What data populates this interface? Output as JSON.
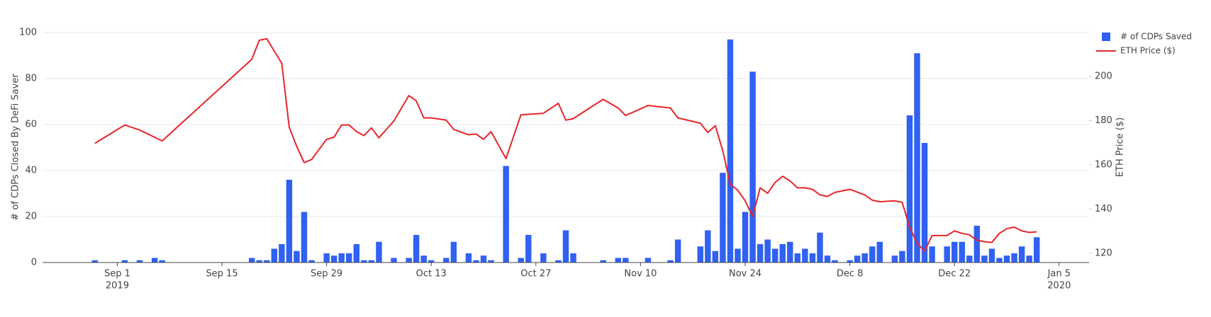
{
  "chart_data": {
    "type": "bar-line",
    "y_label": "# of CDPs Closed By DeFi Saver",
    "y2_label": "ETH Price ($)",
    "xlim": [
      "2019-08-22",
      "2020-01-09"
    ],
    "xticks": [
      {
        "value": "2019-09-01",
        "label": "Sep 1",
        "sublabel": "2019"
      },
      {
        "value": "2019-09-15",
        "label": "Sep 15"
      },
      {
        "value": "2019-09-29",
        "label": "Sep 29"
      },
      {
        "value": "2019-10-13",
        "label": "Oct 13"
      },
      {
        "value": "2019-10-27",
        "label": "Oct 27"
      },
      {
        "value": "2019-11-10",
        "label": "Nov 10"
      },
      {
        "value": "2019-11-24",
        "label": "Nov 24"
      },
      {
        "value": "2019-12-08",
        "label": "Dec 8"
      },
      {
        "value": "2019-12-22",
        "label": "Dec 22"
      },
      {
        "value": "2020-01-05",
        "label": "Jan 5",
        "sublabel": "2020"
      }
    ],
    "ylim": [
      0,
      100
    ],
    "yticks": [
      0,
      20,
      40,
      60,
      80,
      100
    ],
    "y2lim": [
      115.8,
      219.8
    ],
    "y2ticks": [
      120,
      140,
      160,
      180,
      200
    ],
    "grid": true,
    "legend": "top-right",
    "series": [
      {
        "name": "# of CDPs Saved",
        "color": "#3061f2",
        "type": "bar",
        "x": [
          "2019-08-29",
          "2019-09-02",
          "2019-09-04",
          "2019-09-06",
          "2019-09-07",
          "2019-09-19",
          "2019-09-20",
          "2019-09-21",
          "2019-09-22",
          "2019-09-23",
          "2019-09-24",
          "2019-09-25",
          "2019-09-26",
          "2019-09-27",
          "2019-09-29",
          "2019-09-30",
          "2019-10-01",
          "2019-10-02",
          "2019-10-03",
          "2019-10-04",
          "2019-10-05",
          "2019-10-06",
          "2019-10-08",
          "2019-10-10",
          "2019-10-11",
          "2019-10-12",
          "2019-10-13",
          "2019-10-15",
          "2019-10-16",
          "2019-10-18",
          "2019-10-19",
          "2019-10-20",
          "2019-10-21",
          "2019-10-23",
          "2019-10-25",
          "2019-10-26",
          "2019-10-28",
          "2019-10-30",
          "2019-10-31",
          "2019-11-01",
          "2019-11-05",
          "2019-11-07",
          "2019-11-08",
          "2019-11-11",
          "2019-11-14",
          "2019-11-15",
          "2019-11-18",
          "2019-11-19",
          "2019-11-20",
          "2019-11-21",
          "2019-11-22",
          "2019-11-23",
          "2019-11-24",
          "2019-11-25",
          "2019-11-26",
          "2019-11-27",
          "2019-11-28",
          "2019-11-29",
          "2019-11-30",
          "2019-12-01",
          "2019-12-02",
          "2019-12-03",
          "2019-12-04",
          "2019-12-05",
          "2019-12-06",
          "2019-12-08",
          "2019-12-09",
          "2019-12-10",
          "2019-12-11",
          "2019-12-12",
          "2019-12-14",
          "2019-12-15",
          "2019-12-16",
          "2019-12-17",
          "2019-12-18",
          "2019-12-19",
          "2019-12-21",
          "2019-12-22",
          "2019-12-23",
          "2019-12-24",
          "2019-12-25",
          "2019-12-26",
          "2019-12-27",
          "2019-12-28",
          "2019-12-29",
          "2019-12-30",
          "2019-12-31",
          "2020-01-01",
          "2020-01-02"
        ],
        "values": [
          1,
          1,
          1,
          2,
          1,
          2,
          1,
          1,
          6,
          8,
          36,
          5,
          22,
          1,
          4,
          3,
          4,
          4,
          8,
          1,
          1,
          9,
          2,
          2,
          12,
          3,
          1,
          2,
          9,
          4,
          1,
          3,
          1,
          42,
          2,
          12,
          4,
          1,
          14,
          4,
          1,
          2,
          2,
          2,
          1,
          10,
          7,
          14,
          5,
          39,
          97,
          6,
          22,
          83,
          8,
          10,
          6,
          8,
          9,
          4,
          6,
          4,
          13,
          3,
          1,
          1,
          3,
          4,
          7,
          9,
          3,
          5,
          64,
          91,
          52,
          7,
          7,
          9,
          9,
          3,
          16,
          3,
          6,
          2,
          3,
          4,
          7,
          3,
          11
        ]
      },
      {
        "name": "ETH Price ($)",
        "color": "#e4262b",
        "type": "line",
        "axis": "y2",
        "x": [
          "2019-08-29",
          "2019-09-02",
          "2019-09-04",
          "2019-09-07",
          "2019-09-19",
          "2019-09-20",
          "2019-09-21",
          "2019-09-23",
          "2019-09-24",
          "2019-09-25",
          "2019-09-26",
          "2019-09-27",
          "2019-09-29",
          "2019-09-30",
          "2019-10-01",
          "2019-10-02",
          "2019-10-03",
          "2019-10-04",
          "2019-10-05",
          "2019-10-06",
          "2019-10-08",
          "2019-10-10",
          "2019-10-11",
          "2019-10-12",
          "2019-10-13",
          "2019-10-15",
          "2019-10-16",
          "2019-10-18",
          "2019-10-19",
          "2019-10-20",
          "2019-10-21",
          "2019-10-23",
          "2019-10-25",
          "2019-10-28",
          "2019-10-30",
          "2019-10-31",
          "2019-11-01",
          "2019-11-05",
          "2019-11-07",
          "2019-11-08",
          "2019-11-11",
          "2019-11-14",
          "2019-11-15",
          "2019-11-18",
          "2019-11-19",
          "2019-11-20",
          "2019-11-21",
          "2019-11-22",
          "2019-11-23",
          "2019-11-24",
          "2019-11-25",
          "2019-11-26",
          "2019-11-27",
          "2019-11-28",
          "2019-11-29",
          "2019-11-30",
          "2019-12-01",
          "2019-12-02",
          "2019-12-03",
          "2019-12-04",
          "2019-12-05",
          "2019-12-06",
          "2019-12-08",
          "2019-12-10",
          "2019-12-11",
          "2019-12-12",
          "2019-12-14",
          "2019-12-15",
          "2019-12-16",
          "2019-12-17",
          "2019-12-18",
          "2019-12-19",
          "2019-12-21",
          "2019-12-22",
          "2019-12-23",
          "2019-12-24",
          "2019-12-25",
          "2019-12-26",
          "2019-12-27",
          "2019-12-28",
          "2019-12-29",
          "2019-12-30",
          "2019-12-31",
          "2020-01-01",
          "2020-01-02"
        ],
        "values": [
          169.7,
          178,
          175.7,
          170.8,
          207.7,
          216.3,
          217,
          205.9,
          177,
          168.3,
          161,
          162.4,
          171.5,
          172.5,
          178,
          178,
          175,
          173.2,
          176.7,
          172.2,
          179.8,
          191.3,
          188.9,
          181.2,
          181.2,
          180.2,
          176,
          173.6,
          173.9,
          171.5,
          175,
          162.8,
          182.6,
          183.3,
          187.8,
          180.2,
          180.9,
          189.6,
          185.7,
          182.3,
          186.8,
          185.7,
          181.2,
          178.8,
          174.6,
          177.7,
          166.3,
          151.3,
          148.5,
          143.7,
          136.7,
          149.6,
          147.1,
          152,
          154.8,
          152.7,
          149.6,
          149.6,
          148.9,
          146.4,
          145.7,
          147.5,
          148.9,
          146.4,
          144,
          143.3,
          143.7,
          143,
          131.8,
          124.5,
          121,
          128,
          128,
          130.1,
          129,
          128.3,
          125.9,
          125.2,
          124.9,
          129,
          131.1,
          131.8,
          130.1,
          129.4,
          129.7
        ]
      }
    ]
  }
}
